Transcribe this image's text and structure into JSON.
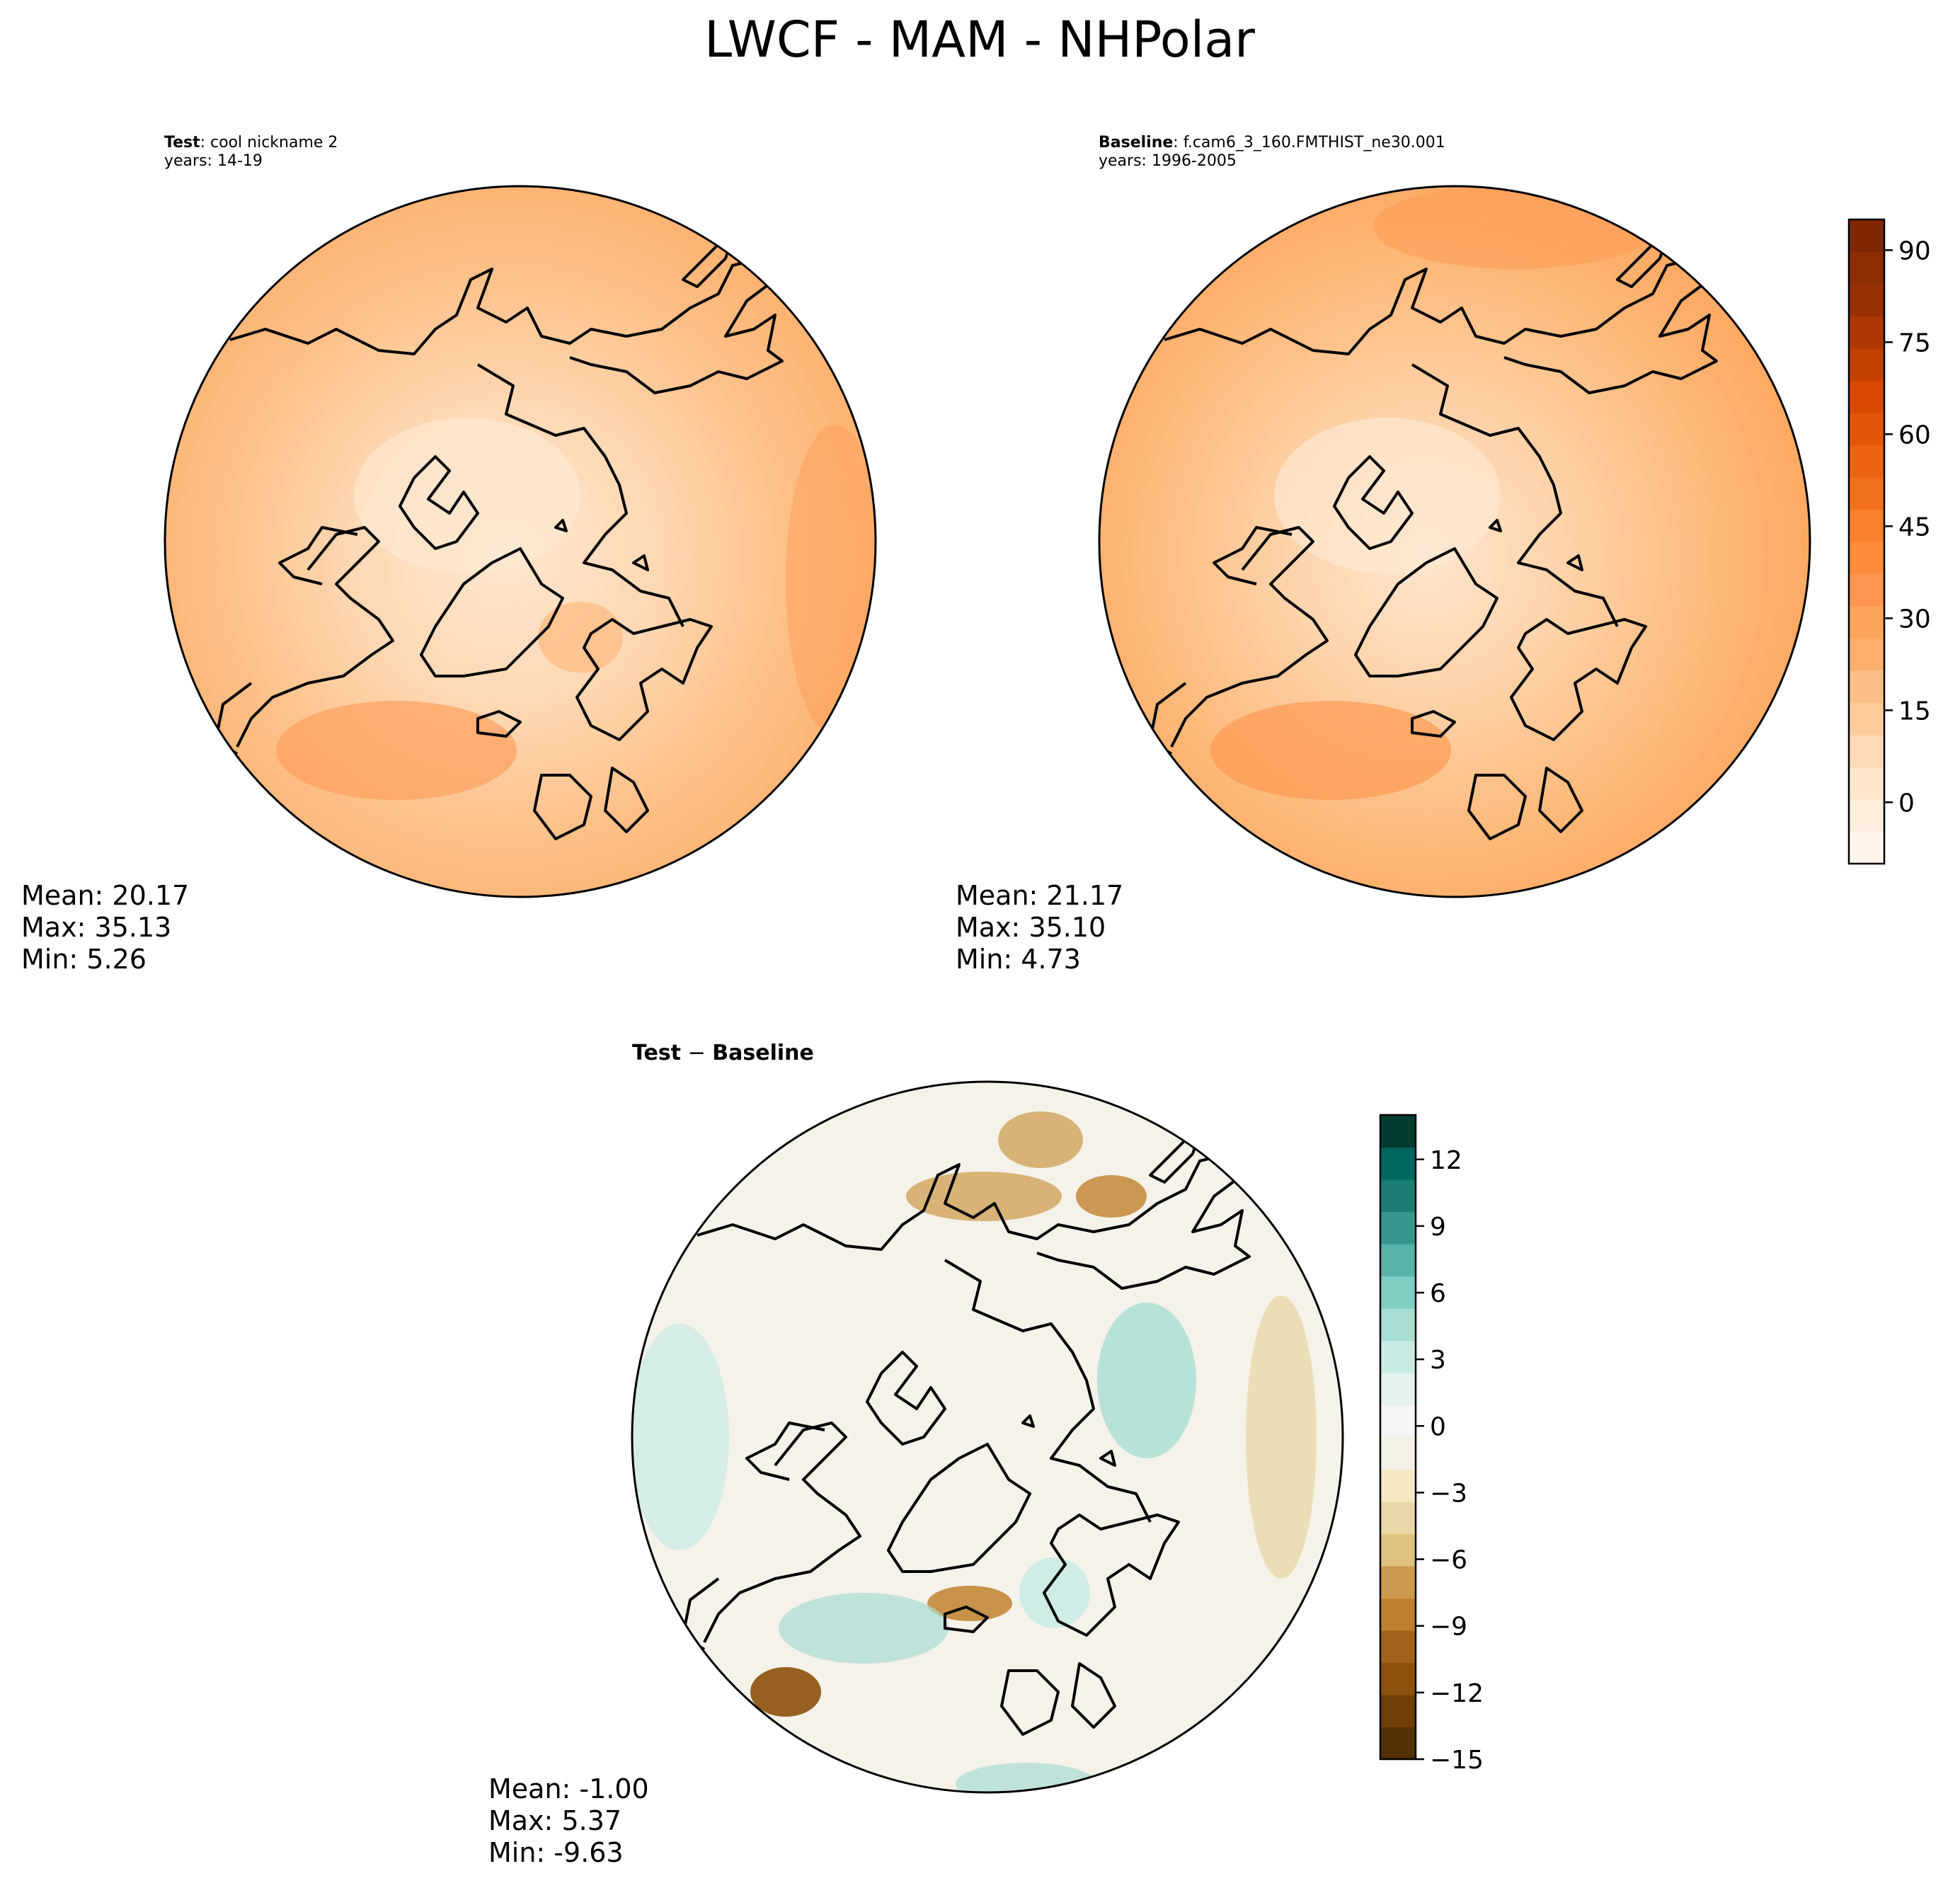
{
  "title": "LWCF - MAM - NHPolar",
  "panels": {
    "test": {
      "label_bold": "Test",
      "label_rest": ": cool nickname 2",
      "years": "years: 14-19",
      "mean": "Mean: 20.17",
      "max": "Max: 35.13",
      "min": "Min:  5.26"
    },
    "baseline": {
      "label_bold": "Baseline",
      "label_rest": ": f.cam6_3_160.FMTHIST_ne30.001",
      "years": "years: 1996-2005",
      "mean": "Mean: 21.17",
      "max": "Max: 35.10",
      "min": "Min:  4.73"
    },
    "diff": {
      "label_bold_a": "Test",
      "label_sep": " − ",
      "label_bold_b": "Baseline",
      "mean": "Mean: -1.00",
      "max": "Max:  5.37",
      "min": "Min: -9.63"
    }
  },
  "chart_data": [
    {
      "type": "heatmap",
      "name": "Test",
      "projection": "north polar stereographic",
      "colormap": "Oranges",
      "stats": {
        "mean": 20.17,
        "max": 35.13,
        "min": 5.26
      }
    },
    {
      "type": "heatmap",
      "name": "Baseline",
      "projection": "north polar stereographic",
      "colormap": "Oranges",
      "stats": {
        "mean": 21.17,
        "max": 35.1,
        "min": 4.73
      },
      "colorbar": {
        "range": [
          -10,
          95
        ],
        "ticks": [
          "90",
          "75",
          "60",
          "45",
          "30",
          "15",
          "0"
        ],
        "tick_values": [
          90,
          75,
          60,
          45,
          30,
          15,
          0
        ],
        "colors": [
          "#fff5eb",
          "#feeedd",
          "#fee6ce",
          "#fdd9b5",
          "#fdcb9c",
          "#fdbf86",
          "#fdae6b",
          "#fda45c",
          "#fd964f",
          "#fd8d3c",
          "#f87f2c",
          "#f3701b",
          "#ec6311",
          "#e25609",
          "#d94801",
          "#c34001",
          "#ad3803",
          "#973003",
          "#8c2d04",
          "#7f2704"
        ]
      },
      "legend_position": "right"
    },
    {
      "type": "heatmap",
      "name": "Test − Baseline",
      "projection": "north polar stereographic",
      "colormap": "BrBG",
      "stats": {
        "mean": -1.0,
        "max": 5.37,
        "min": -9.63
      },
      "colorbar": {
        "range": [
          -15,
          14
        ],
        "ticks": [
          "12",
          "9",
          "6",
          "3",
          "0",
          "−3",
          "−6",
          "−9",
          "−12",
          "−15"
        ],
        "tick_values": [
          12,
          9,
          6,
          3,
          0,
          -3,
          -6,
          -9,
          -12,
          -15
        ],
        "colors": [
          "#543005",
          "#6f3f08",
          "#8c510a",
          "#a2621c",
          "#bf812d",
          "#cc9a4f",
          "#dfc27d",
          "#e9d7a8",
          "#f6e8c3",
          "#f5f0e4",
          "#f5f5f5",
          "#e4f2f0",
          "#c7eae5",
          "#a8ddd4",
          "#80cdc1",
          "#58b3a8",
          "#35978f",
          "#1b7d74",
          "#01665e",
          "#003c30"
        ]
      },
      "legend_position": "right"
    }
  ]
}
